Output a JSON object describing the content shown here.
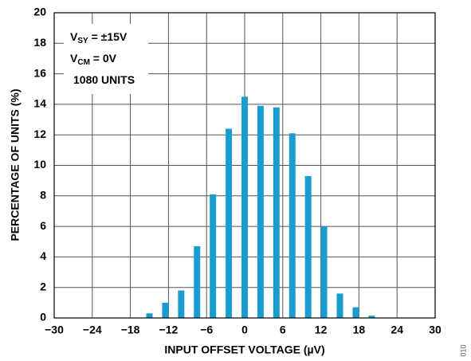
{
  "chart_data": {
    "type": "bar",
    "x_label": "INPUT OFFSET VOLTAGE (µV)",
    "y_label": "PERCENTAGE OF UNITS (%)",
    "x": [
      -15,
      -12.5,
      -10,
      -7.5,
      -5,
      -2.5,
      0,
      2.5,
      5,
      7.5,
      10,
      12.5,
      15,
      17.5,
      20
    ],
    "values": [
      0.3,
      1.0,
      1.8,
      4.7,
      8.1,
      12.4,
      14.5,
      13.9,
      13.8,
      12.1,
      9.3,
      6.0,
      1.6,
      0.7,
      0.15
    ],
    "color": "#1a9cd0",
    "xlim": [
      -30,
      30
    ],
    "xticks": [
      {
        "value": -30,
        "label": "−30"
      },
      {
        "value": -24,
        "label": "−24"
      },
      {
        "value": -18,
        "label": "−18"
      },
      {
        "value": -12,
        "label": "−12"
      },
      {
        "value": -6,
        "label": "−6"
      },
      0,
      6,
      12,
      18,
      24,
      30
    ],
    "ylim": [
      0,
      20
    ],
    "yticks": [
      0,
      2,
      4,
      6,
      8,
      10,
      12,
      14,
      16,
      18,
      20
    ],
    "grid": true,
    "annotations": [
      {
        "main": "V",
        "sub": "SY",
        "rest": " = ±15V"
      },
      {
        "main": "V",
        "sub": "CM",
        "rest": " = 0V"
      },
      {
        "main": "1080 UNITS"
      }
    ],
    "figure_id": "010"
  }
}
